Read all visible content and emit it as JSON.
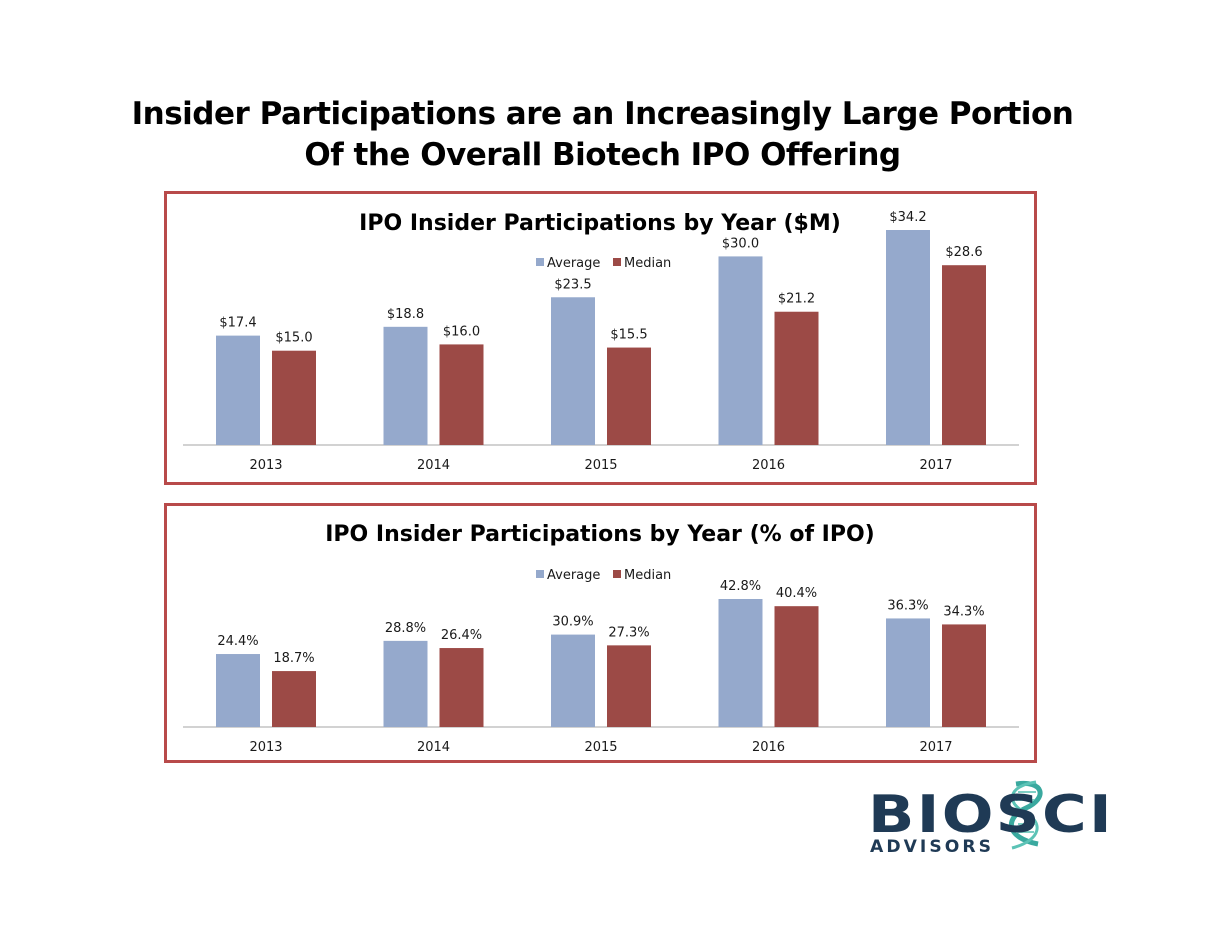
{
  "slide": {
    "title_line1": "Insider Participations are an Increasingly Large Portion",
    "title_line2": "Of the Overall Biotech IPO Offering"
  },
  "colors": {
    "average": "#95a9cc",
    "median": "#9c4a46",
    "frame": "#b84a4a",
    "axis": "#a6a6a6"
  },
  "chart_data": [
    {
      "type": "bar",
      "title": "IPO Insider Participations by Year ($M)",
      "categories": [
        "2013",
        "2014",
        "2015",
        "2016",
        "2017"
      ],
      "series": [
        {
          "name": "Average",
          "values": [
            17.4,
            18.8,
            23.5,
            30.0,
            34.2
          ],
          "labels": [
            "$17.4",
            "$18.8",
            "$23.5",
            "$30.0",
            "$34.2"
          ]
        },
        {
          "name": "Median",
          "values": [
            15.0,
            16.0,
            15.5,
            21.2,
            28.6
          ],
          "labels": [
            "$15.0",
            "$16.0",
            "$15.5",
            "$21.2",
            "$28.6"
          ]
        }
      ],
      "legend_position": "top-center",
      "xlabel": "",
      "ylabel": "",
      "ylim": [
        0,
        34.2
      ]
    },
    {
      "type": "bar",
      "title": "IPO Insider Participations by Year (% of IPO)",
      "categories": [
        "2013",
        "2014",
        "2015",
        "2016",
        "2017"
      ],
      "series": [
        {
          "name": "Average",
          "values": [
            24.4,
            28.8,
            30.9,
            42.8,
            36.3
          ],
          "labels": [
            "24.4%",
            "28.8%",
            "30.9%",
            "42.8%",
            "36.3%"
          ]
        },
        {
          "name": "Median",
          "values": [
            18.7,
            26.4,
            27.3,
            40.4,
            34.3
          ],
          "labels": [
            "18.7%",
            "26.4%",
            "27.3%",
            "40.4%",
            "34.3%"
          ]
        }
      ],
      "legend_position": "top-center",
      "xlabel": "",
      "ylabel": "",
      "ylim": [
        0,
        42.8
      ]
    }
  ],
  "logo": {
    "text_main": "BIOSCI",
    "text_sub": "ADVISORS"
  }
}
